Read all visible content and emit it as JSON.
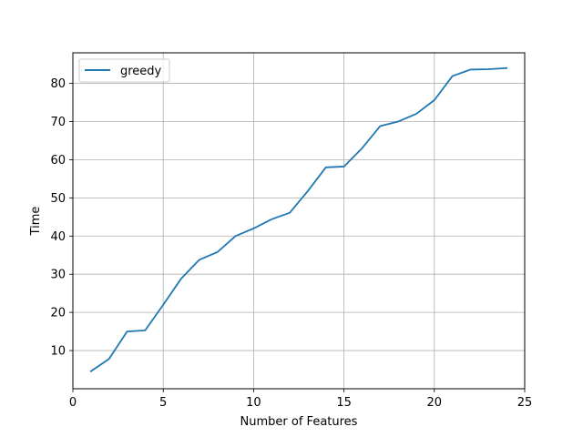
{
  "chart_data": {
    "type": "line",
    "xlabel": "Number of Features",
    "ylabel": "Time",
    "xlim": [
      0,
      25
    ],
    "ylim": [
      0,
      88
    ],
    "xticks": [
      0,
      5,
      10,
      15,
      20,
      25
    ],
    "yticks": [
      10,
      20,
      30,
      40,
      50,
      60,
      70,
      80
    ],
    "grid": true,
    "legend_position": "top-left",
    "series": [
      {
        "name": "greedy",
        "color": "#1f77b4",
        "x": [
          1,
          2,
          3,
          4,
          5,
          6,
          7,
          8,
          9,
          10,
          11,
          12,
          13,
          14,
          15,
          16,
          17,
          18,
          19,
          20,
          21,
          22,
          23,
          24
        ],
        "y": [
          4.6,
          7.8,
          15.0,
          15.3,
          22.0,
          28.9,
          33.8,
          35.8,
          40.0,
          42.0,
          44.4,
          46.1,
          51.8,
          58.0,
          58.2,
          63.0,
          68.8,
          70.0,
          72.0,
          75.6,
          81.9,
          83.6,
          83.7,
          84.0
        ]
      }
    ]
  }
}
